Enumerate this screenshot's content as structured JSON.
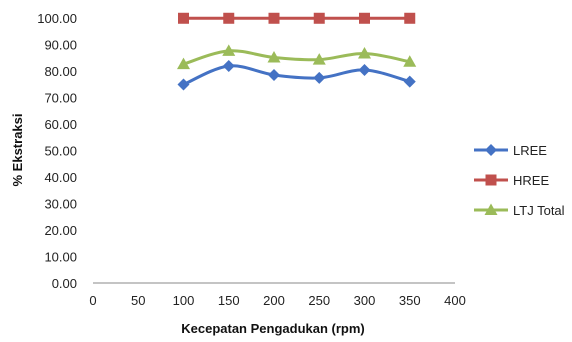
{
  "chart_data": {
    "type": "line",
    "xlabel": "Kecepatan Pengadukan (rpm)",
    "ylabel": "% Ekstraksi",
    "xlim": [
      0,
      400
    ],
    "ylim": [
      0,
      100
    ],
    "x_ticks": [
      "0",
      "50",
      "100",
      "150",
      "200",
      "250",
      "300",
      "350",
      "400"
    ],
    "y_ticks": [
      "0.00",
      "10.00",
      "20.00",
      "30.00",
      "40.00",
      "50.00",
      "60.00",
      "70.00",
      "80.00",
      "90.00",
      "100.00"
    ],
    "grid": false,
    "legend_position": "right",
    "x": [
      100,
      150,
      200,
      250,
      300,
      350
    ],
    "series": [
      {
        "name": "LREE",
        "values": [
          74.9,
          81.9,
          78.5,
          77.4,
          80.4,
          76.0
        ],
        "color": "#4472C4",
        "marker": "diamond"
      },
      {
        "name": "HREE",
        "values": [
          99.9,
          99.9,
          99.9,
          99.9,
          99.9,
          99.9
        ],
        "color": "#C0504D",
        "marker": "square"
      },
      {
        "name": "LTJ Total",
        "values": [
          82.6,
          87.6,
          85.1,
          84.3,
          86.6,
          83.5
        ],
        "color": "#9BBB59",
        "marker": "triangle"
      }
    ]
  }
}
